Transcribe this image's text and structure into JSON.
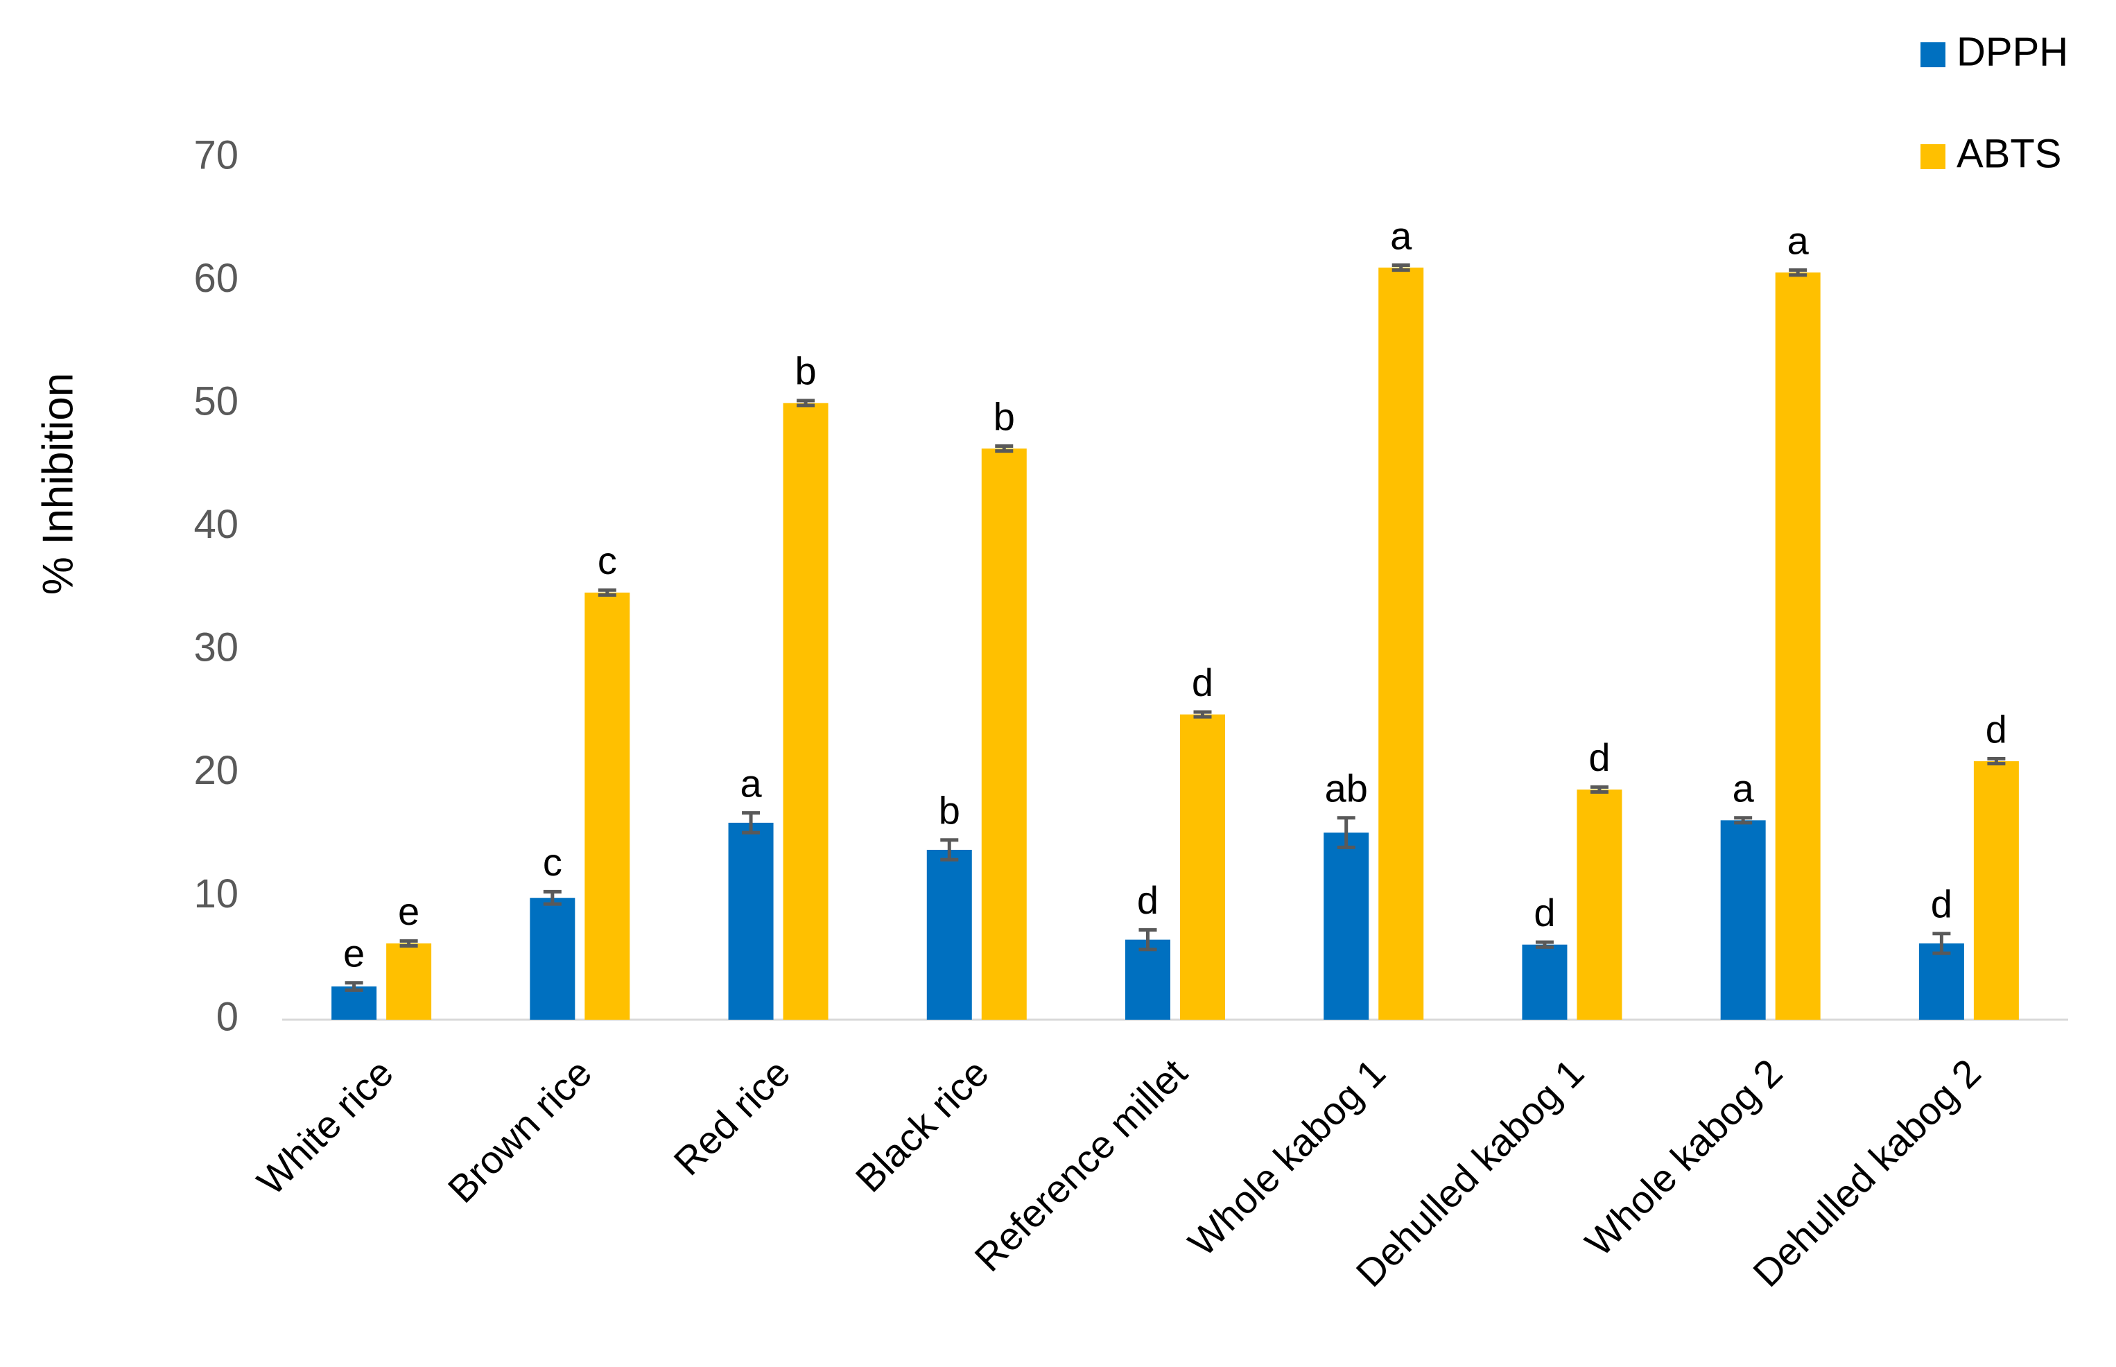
{
  "chart_data": {
    "type": "bar",
    "y_label": "% Inhibition",
    "categories": [
      "White rice",
      "Brown rice",
      "Red rice",
      "Black rice",
      "Reference millet",
      "Whole kabog 1",
      "Dehulled kabog 1",
      "Whole kabog 2",
      "Dehulled kabog 2"
    ],
    "series": [
      {
        "name": "DPPH",
        "color": "#0070c0",
        "values": [
          2.7,
          9.9,
          16.0,
          13.8,
          6.5,
          15.2,
          6.1,
          16.2,
          6.2
        ],
        "errors": [
          0.3,
          0.5,
          0.8,
          0.8,
          0.8,
          1.2,
          0.2,
          0.2,
          0.8
        ],
        "labels": [
          "e",
          "c",
          "a",
          "b",
          "d",
          "ab",
          "d",
          "a",
          "d"
        ]
      },
      {
        "name": "ABTS",
        "color": "#ffc000",
        "values": [
          6.2,
          34.7,
          50.1,
          46.4,
          24.8,
          61.1,
          18.7,
          60.7,
          21.0
        ],
        "errors": [
          0.2,
          0.2,
          0.2,
          0.2,
          0.2,
          0.2,
          0.2,
          0.2,
          0.2
        ],
        "labels": [
          "e",
          "c",
          "b",
          "b",
          "d",
          "a",
          "d",
          "a",
          "d"
        ]
      }
    ],
    "ylim": [
      0,
      70
    ],
    "yticks": [
      0,
      10,
      20,
      30,
      40,
      50,
      60,
      70
    ],
    "grid": false,
    "legend": "top-right",
    "error_color": "#595959"
  }
}
